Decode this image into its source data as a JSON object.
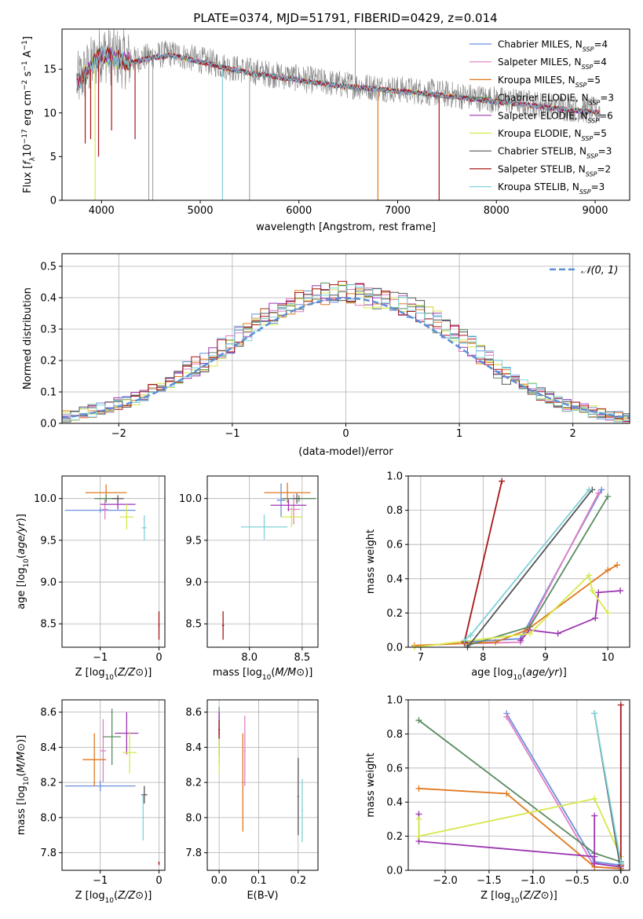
{
  "title": "PLATE=0374, MJD=51791, FIBERID=0429, z=0.014",
  "colors": {
    "grid": "#b0b0b0",
    "normal": "#5b8fd6",
    "series": [
      "#6a8fdc",
      "#e07fc4",
      "#e0781f",
      "#5a8a60",
      "#9b36b0",
      "#d7e84a",
      "#555555",
      "#a81515",
      "#7fd2d8"
    ]
  },
  "chart_data": [
    {
      "type": "line",
      "title": "PLATE=0374, MJD=51791, FIBERID=0429, z=0.014",
      "xlabel": "wavelength [Angstrom, rest frame]",
      "ylabel": "Flux [fλ10⁻¹⁷ erg cm⁻² s⁻¹ A⁻¹]",
      "xlim": [
        3600,
        9350
      ],
      "ylim": [
        0,
        19.6
      ],
      "xticks": [
        4000,
        5000,
        6000,
        7000,
        8000,
        9000
      ],
      "yticks": [
        0,
        5,
        10,
        15
      ],
      "grid": false,
      "legend": "top-right",
      "series": [
        {
          "name": "Chabrier MILES, N_SSP=4",
          "main": "Chabrier MILES, N",
          "sub": "SSP",
          "tail": "=4"
        },
        {
          "name": "Salpeter MILES, N_SSP=4",
          "main": "Salpeter MILES, N",
          "sub": "SSP",
          "tail": "=4"
        },
        {
          "name": "Kroupa MILES, N_SSP=5",
          "main": "Kroupa MILES, N",
          "sub": "SSP",
          "tail": "=5"
        },
        {
          "name": "Chabrier ELODIE, N_SSP=3",
          "main": "Chabrier ELODIE, N",
          "sub": "SSP",
          "tail": "=3"
        },
        {
          "name": "Salpeter ELODIE, N_SSP=6",
          "main": "Salpeter ELODIE, N",
          "sub": "SSP",
          "tail": "=6"
        },
        {
          "name": "Kroupa ELODIE, N_SSP=5",
          "main": "Kroupa ELODIE, N",
          "sub": "SSP",
          "tail": "=5"
        },
        {
          "name": "Chabrier STELIB, N_SSP=3",
          "main": "Chabrier STELIB, N",
          "sub": "SSP",
          "tail": "=3"
        },
        {
          "name": "Salpeter STELIB, N_SSP=2",
          "main": "Salpeter STELIB, N",
          "sub": "SSP",
          "tail": "=2"
        },
        {
          "name": "Kroupa STELIB, N_SSP=3",
          "main": "Kroupa STELIB, N",
          "sub": "SSP",
          "tail": "=3"
        }
      ],
      "continuum": [
        [
          3750,
          13.5
        ],
        [
          3900,
          15.5
        ],
        [
          4000,
          17.0
        ],
        [
          4100,
          16.5
        ],
        [
          4300,
          16.0
        ],
        [
          4500,
          16.5
        ],
        [
          4700,
          16.8
        ],
        [
          4900,
          16.3
        ],
        [
          5100,
          15.8
        ],
        [
          5300,
          15.2
        ],
        [
          5500,
          14.8
        ],
        [
          5800,
          14.3
        ],
        [
          6100,
          13.8
        ],
        [
          6400,
          13.3
        ],
        [
          6700,
          13.0
        ],
        [
          7000,
          12.7
        ],
        [
          7300,
          12.4
        ],
        [
          7600,
          12.0
        ],
        [
          8000,
          11.5
        ],
        [
          8400,
          11.0
        ],
        [
          8700,
          10.6
        ],
        [
          9050,
          10.2
        ]
      ],
      "absorption_drops": [
        {
          "x": 3835,
          "to": 6.5
        },
        {
          "x": 3890,
          "to": 7.0
        },
        {
          "x": 3935,
          "to": 0
        },
        {
          "x": 3970,
          "to": 5.0
        },
        {
          "x": 4102,
          "to": 8.0
        },
        {
          "x": 4340,
          "to": 7.0
        },
        {
          "x": 5225,
          "to": 0
        },
        {
          "x": 6800,
          "to": 0
        },
        {
          "x": 7420,
          "to": 0
        }
      ],
      "grey_spikes": [
        {
          "x": 4480,
          "to": 0
        },
        {
          "x": 4520,
          "to": 0
        },
        {
          "x": 5500,
          "to": 0
        },
        {
          "x": 6570,
          "to": 19.6
        }
      ]
    },
    {
      "type": "step",
      "xlabel": "(data-model)/error",
      "ylabel": "Normed distribution",
      "xlim": [
        -2.5,
        2.5
      ],
      "ylim": [
        0,
        0.54
      ],
      "xticks": [
        -2,
        -1,
        0,
        1,
        2
      ],
      "yticks": [
        0.0,
        0.1,
        0.2,
        0.3,
        0.4,
        0.5
      ],
      "grid": true,
      "legend": "top-right",
      "legend_label": "𝒩(0, 1)",
      "bin_width": 0.1,
      "bin_start": -2.5,
      "mean_hist": [
        0.022,
        0.028,
        0.035,
        0.04,
        0.047,
        0.054,
        0.061,
        0.07,
        0.08,
        0.09,
        0.104,
        0.118,
        0.133,
        0.148,
        0.165,
        0.183,
        0.2,
        0.218,
        0.237,
        0.257,
        0.277,
        0.296,
        0.314,
        0.332,
        0.348,
        0.363,
        0.376,
        0.388,
        0.398,
        0.405,
        0.412,
        0.418,
        0.42,
        0.418,
        0.41,
        0.4,
        0.398,
        0.396,
        0.39,
        0.38,
        0.37,
        0.356,
        0.34,
        0.322,
        0.304,
        0.284,
        0.263,
        0.242,
        0.221,
        0.2,
        0.18,
        0.16,
        0.142,
        0.125,
        0.108,
        0.094,
        0.08,
        0.068,
        0.058,
        0.049,
        0.042,
        0.036,
        0.031,
        0.027,
        0.023,
        0.02
      ]
    },
    {
      "type": "scatter",
      "xlabel": "Z [log10(Z/Z⊙)]",
      "ylabel": "age  [log10(age/yr)]",
      "xlim": [
        -1.65,
        0.1
      ],
      "ylim": [
        8.22,
        10.27
      ],
      "xticks": [
        -1,
        0
      ],
      "yticks": [
        8.5,
        9.0,
        9.5,
        10.0
      ],
      "grid": true,
      "points": [
        {
          "s": 0,
          "x": -1.0,
          "xerr": 0.6,
          "y": 9.86,
          "yerr": 0.03
        },
        {
          "s": 1,
          "x": -0.92,
          "xerr": 0.05,
          "y": 9.87,
          "yerr": 0.12
        },
        {
          "s": 2,
          "x": -0.9,
          "xerr": 0.35,
          "y": 10.07,
          "yerr": 0.1
        },
        {
          "s": 3,
          "x": -0.9,
          "xerr": 0.2,
          "y": 10.0,
          "yerr": 0.05
        },
        {
          "s": 4,
          "x": -0.7,
          "xerr": 0.3,
          "y": 9.93,
          "yerr": 0.06
        },
        {
          "s": 5,
          "x": -0.55,
          "xerr": 0.12,
          "y": 9.78,
          "yerr": 0.15
        },
        {
          "s": 6,
          "x": -0.7,
          "xerr": 0.1,
          "y": 10.0,
          "yerr": 0.04
        },
        {
          "s": 7,
          "x": 0.0,
          "xerr": 0.01,
          "y": 8.48,
          "yerr": 0.17
        },
        {
          "s": 8,
          "x": -0.25,
          "xerr": 0.04,
          "y": 9.65,
          "yerr": 0.15
        }
      ]
    },
    {
      "type": "scatter",
      "xlabel": "mass [log10(M/M⊙)]",
      "ylabel": "",
      "xlim": [
        7.6,
        8.65
      ],
      "ylim": [
        8.22,
        10.27
      ],
      "xticks": [
        8.0,
        8.5
      ],
      "yticks": [
        8.5,
        9.0,
        9.5,
        10.0
      ],
      "grid": true,
      "points": [
        {
          "s": 0,
          "x": 8.3,
          "xerr": 0.04,
          "y": 9.98,
          "yerr": 0.2
        },
        {
          "s": 1,
          "x": 8.42,
          "xerr": 0.06,
          "y": 9.87,
          "yerr": 0.18
        },
        {
          "s": 2,
          "x": 8.36,
          "xerr": 0.22,
          "y": 10.07,
          "yerr": 0.12
        },
        {
          "s": 3,
          "x": 8.47,
          "xerr": 0.16,
          "y": 10.0,
          "yerr": 0.04
        },
        {
          "s": 4,
          "x": 8.37,
          "xerr": 0.17,
          "y": 9.92,
          "yerr": 0.07
        },
        {
          "s": 5,
          "x": 8.4,
          "xerr": 0.1,
          "y": 9.78,
          "yerr": 0.12
        },
        {
          "s": 6,
          "x": 8.45,
          "xerr": 0.03,
          "y": 10.0,
          "yerr": 0.06
        },
        {
          "s": 7,
          "x": 7.75,
          "xerr": 0.01,
          "y": 8.48,
          "yerr": 0.17
        },
        {
          "s": 8,
          "x": 8.14,
          "xerr": 0.22,
          "y": 9.66,
          "yerr": 0.15
        }
      ]
    },
    {
      "type": "line",
      "xlabel": "age  [log10(age/yr)]",
      "ylabel": "mass weight",
      "xlim": [
        6.8,
        10.35
      ],
      "ylim": [
        0,
        1.0
      ],
      "xticks": [
        7,
        8,
        9,
        10
      ],
      "yticks": [
        0.0,
        0.2,
        0.4,
        0.6,
        0.8,
        1.0
      ],
      "grid": true,
      "series": [
        {
          "s": 0,
          "pts": [
            [
              7.7,
              0.03
            ],
            [
              8.6,
              0.05
            ],
            [
              9.9,
              0.92
            ]
          ]
        },
        {
          "s": 1,
          "pts": [
            [
              7.7,
              0.02
            ],
            [
              8.6,
              0.03
            ],
            [
              9.85,
              0.9
            ]
          ]
        },
        {
          "s": 2,
          "pts": [
            [
              6.9,
              0.01
            ],
            [
              8.2,
              0.03
            ],
            [
              8.7,
              0.1
            ],
            [
              10.0,
              0.45
            ],
            [
              10.15,
              0.48
            ]
          ]
        },
        {
          "s": 3,
          "pts": [
            [
              7.75,
              0.01
            ],
            [
              8.75,
              0.12
            ],
            [
              10.0,
              0.88
            ]
          ]
        },
        {
          "s": 4,
          "pts": [
            [
              8.6,
              0.04
            ],
            [
              8.75,
              0.1
            ],
            [
              9.2,
              0.08
            ],
            [
              9.8,
              0.17
            ],
            [
              9.85,
              0.32
            ],
            [
              10.2,
              0.33
            ]
          ]
        },
        {
          "s": 5,
          "pts": [
            [
              6.9,
              0.0
            ],
            [
              8.75,
              0.08
            ],
            [
              9.7,
              0.42
            ],
            [
              9.75,
              0.33
            ],
            [
              10.0,
              0.2
            ]
          ]
        },
        {
          "s": 6,
          "pts": [
            [
              7.75,
              0.0
            ],
            [
              9.75,
              0.92
            ]
          ]
        },
        {
          "s": 7,
          "pts": [
            [
              7.7,
              0.03
            ],
            [
              8.3,
              0.97
            ]
          ]
        },
        {
          "s": 8,
          "pts": [
            [
              7.7,
              0.04
            ],
            [
              7.8,
              0.07
            ],
            [
              9.7,
              0.92
            ]
          ]
        }
      ]
    },
    {
      "type": "scatter",
      "xlabel": "Z [log10(Z/Z⊙)]",
      "ylabel": "mass [log10(M/M⊙)]",
      "xlim": [
        -1.65,
        0.1
      ],
      "ylim": [
        7.7,
        8.67
      ],
      "xticks": [
        -1,
        0
      ],
      "yticks": [
        7.8,
        8.0,
        8.2,
        8.4,
        8.6
      ],
      "grid": true,
      "points": [
        {
          "s": 0,
          "x": -1.0,
          "xerr": 0.6,
          "y": 8.18,
          "yerr": 0.03
        },
        {
          "s": 1,
          "x": -0.95,
          "xerr": 0.05,
          "y": 8.38,
          "yerr": 0.18
        },
        {
          "s": 2,
          "x": -1.1,
          "xerr": 0.2,
          "y": 8.33,
          "yerr": 0.15
        },
        {
          "s": 3,
          "x": -0.8,
          "xerr": 0.15,
          "y": 8.46,
          "yerr": 0.16
        },
        {
          "s": 4,
          "x": -0.55,
          "xerr": 0.2,
          "y": 8.48,
          "yerr": 0.12
        },
        {
          "s": 5,
          "x": -0.5,
          "xerr": 0.12,
          "y": 8.37,
          "yerr": 0.12
        },
        {
          "s": 6,
          "x": -0.25,
          "xerr": 0.05,
          "y": 8.13,
          "yerr": 0.05
        },
        {
          "s": 7,
          "x": 0.0,
          "xerr": 0.01,
          "y": 7.74,
          "yerr": 0.01
        },
        {
          "s": 8,
          "x": -0.27,
          "xerr": 0.02,
          "y": 8.0,
          "yerr": 0.13
        }
      ]
    },
    {
      "type": "scatter",
      "xlabel": "E(B-V)",
      "ylabel": "",
      "xlim": [
        -0.03,
        0.25
      ],
      "ylim": [
        7.7,
        8.67
      ],
      "xticks": [
        0.0,
        0.1,
        0.2
      ],
      "yticks": [
        7.8,
        8.0,
        8.2,
        8.4,
        8.6
      ],
      "grid": true,
      "points": [
        {
          "s": 0,
          "x": 0.0,
          "xerr": 0.002,
          "y": 8.45,
          "yerr": 0.15
        },
        {
          "s": 1,
          "x": 0.065,
          "xerr": 0.002,
          "y": 8.38,
          "yerr": 0.2
        },
        {
          "s": 2,
          "x": 0.06,
          "xerr": 0.002,
          "y": 8.2,
          "yerr": 0.28
        },
        {
          "s": 3,
          "x": 0.0,
          "xerr": 0.002,
          "y": 8.55,
          "yerr": 0.08
        },
        {
          "s": 4,
          "x": 0.0,
          "xerr": 0.002,
          "y": 8.48,
          "yerr": 0.12
        },
        {
          "s": 5,
          "x": 0.0,
          "xerr": 0.002,
          "y": 8.4,
          "yerr": 0.15
        },
        {
          "s": 6,
          "x": 0.2,
          "xerr": 0.002,
          "y": 8.12,
          "yerr": 0.22
        },
        {
          "s": 7,
          "x": 0.0,
          "xerr": 0.002,
          "y": 8.5,
          "yerr": 0.05
        },
        {
          "s": 8,
          "x": 0.21,
          "xerr": 0.002,
          "y": 8.04,
          "yerr": 0.18
        }
      ]
    },
    {
      "type": "line",
      "xlabel": "Z [log10(Z/Z⊙)]",
      "ylabel": "mass weight",
      "xlim": [
        -2.42,
        0.1
      ],
      "ylim": [
        0,
        1.0
      ],
      "xticks": [
        -2.0,
        -1.5,
        -1.0,
        -0.5,
        0.0
      ],
      "yticks": [
        0.0,
        0.2,
        0.4,
        0.6,
        0.8,
        1.0
      ],
      "grid": true,
      "series": [
        {
          "s": 0,
          "pts": [
            [
              -1.3,
              0.92
            ],
            [
              -0.3,
              0.05
            ],
            [
              0.0,
              0.03
            ]
          ]
        },
        {
          "s": 1,
          "pts": [
            [
              -1.3,
              0.9
            ],
            [
              -0.3,
              0.02
            ],
            [
              0.0,
              0.01
            ]
          ]
        },
        {
          "s": 2,
          "pts": [
            [
              -2.3,
              0.48
            ],
            [
              -1.3,
              0.45
            ],
            [
              -0.3,
              0.02
            ],
            [
              0.0,
              0.01
            ]
          ]
        },
        {
          "s": 3,
          "pts": [
            [
              -2.3,
              0.88
            ],
            [
              -0.3,
              0.1
            ],
            [
              0.0,
              0.05
            ]
          ]
        },
        {
          "s": 4,
          "pts": [
            [
              -2.3,
              0.33
            ],
            [
              -2.3,
              0.17
            ],
            [
              -0.3,
              0.08
            ],
            [
              -0.3,
              0.32
            ],
            [
              -0.3,
              0.04
            ],
            [
              0.0,
              0.02
            ]
          ]
        },
        {
          "s": 5,
          "pts": [
            [
              -2.3,
              0.3
            ],
            [
              -2.3,
              0.2
            ],
            [
              -0.3,
              0.42
            ],
            [
              0.0,
              0.08
            ]
          ]
        },
        {
          "s": 6,
          "pts": [
            [
              -0.3,
              0.92
            ],
            [
              0.0,
              0.0
            ]
          ]
        },
        {
          "s": 7,
          "pts": [
            [
              0.0,
              0.97
            ],
            [
              0.0,
              0.03
            ]
          ]
        },
        {
          "s": 8,
          "pts": [
            [
              -0.3,
              0.92
            ],
            [
              0.0,
              0.04
            ]
          ]
        }
      ]
    }
  ]
}
